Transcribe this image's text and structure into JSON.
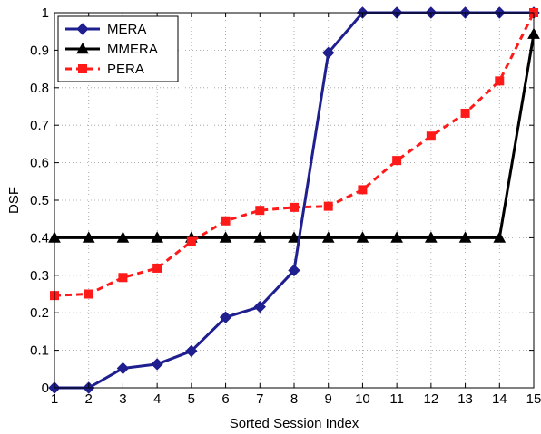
{
  "chart_data": {
    "type": "line",
    "title": "",
    "xlabel": "Sorted Session Index",
    "ylabel": "DSF",
    "xlim": [
      1,
      15
    ],
    "ylim": [
      0,
      1
    ],
    "x": [
      1,
      2,
      3,
      4,
      5,
      6,
      7,
      8,
      9,
      10,
      11,
      12,
      13,
      14,
      15
    ],
    "xticks": [
      "1",
      "2",
      "3",
      "4",
      "5",
      "6",
      "7",
      "8",
      "9",
      "10",
      "11",
      "12",
      "13",
      "14",
      "15"
    ],
    "yticks": [
      0,
      0.1,
      0.2,
      0.3,
      0.4,
      0.5,
      0.6,
      0.7,
      0.8,
      0.9,
      1
    ],
    "ytick_labels": [
      "0",
      "0.1",
      "0.2",
      "0.3",
      "0.4",
      "0.5",
      "0.6",
      "0.7",
      "0.8",
      "0.9",
      "1"
    ],
    "grid": true,
    "legend_position": "top-left",
    "series": [
      {
        "name": "MERA",
        "color": "#1f1f8f",
        "marker": "diamond",
        "line_style": "solid",
        "values": [
          0,
          0,
          0.052,
          0.063,
          0.098,
          0.188,
          0.216,
          0.313,
          0.893,
          1,
          1,
          1,
          1,
          1,
          1
        ]
      },
      {
        "name": "MMERA",
        "color": "#000000",
        "marker": "triangle",
        "line_style": "solid",
        "values": [
          0.4,
          0.4,
          0.4,
          0.4,
          0.4,
          0.4,
          0.4,
          0.4,
          0.4,
          0.4,
          0.4,
          0.4,
          0.4,
          0.4,
          0.943
        ]
      },
      {
        "name": "PERA",
        "color": "#ff1a1a",
        "marker": "square",
        "line_style": "dashed",
        "values": [
          0.246,
          0.25,
          0.294,
          0.319,
          0.39,
          0.445,
          0.473,
          0.481,
          0.484,
          0.528,
          0.606,
          0.671,
          0.732,
          0.818,
          1
        ]
      }
    ]
  }
}
